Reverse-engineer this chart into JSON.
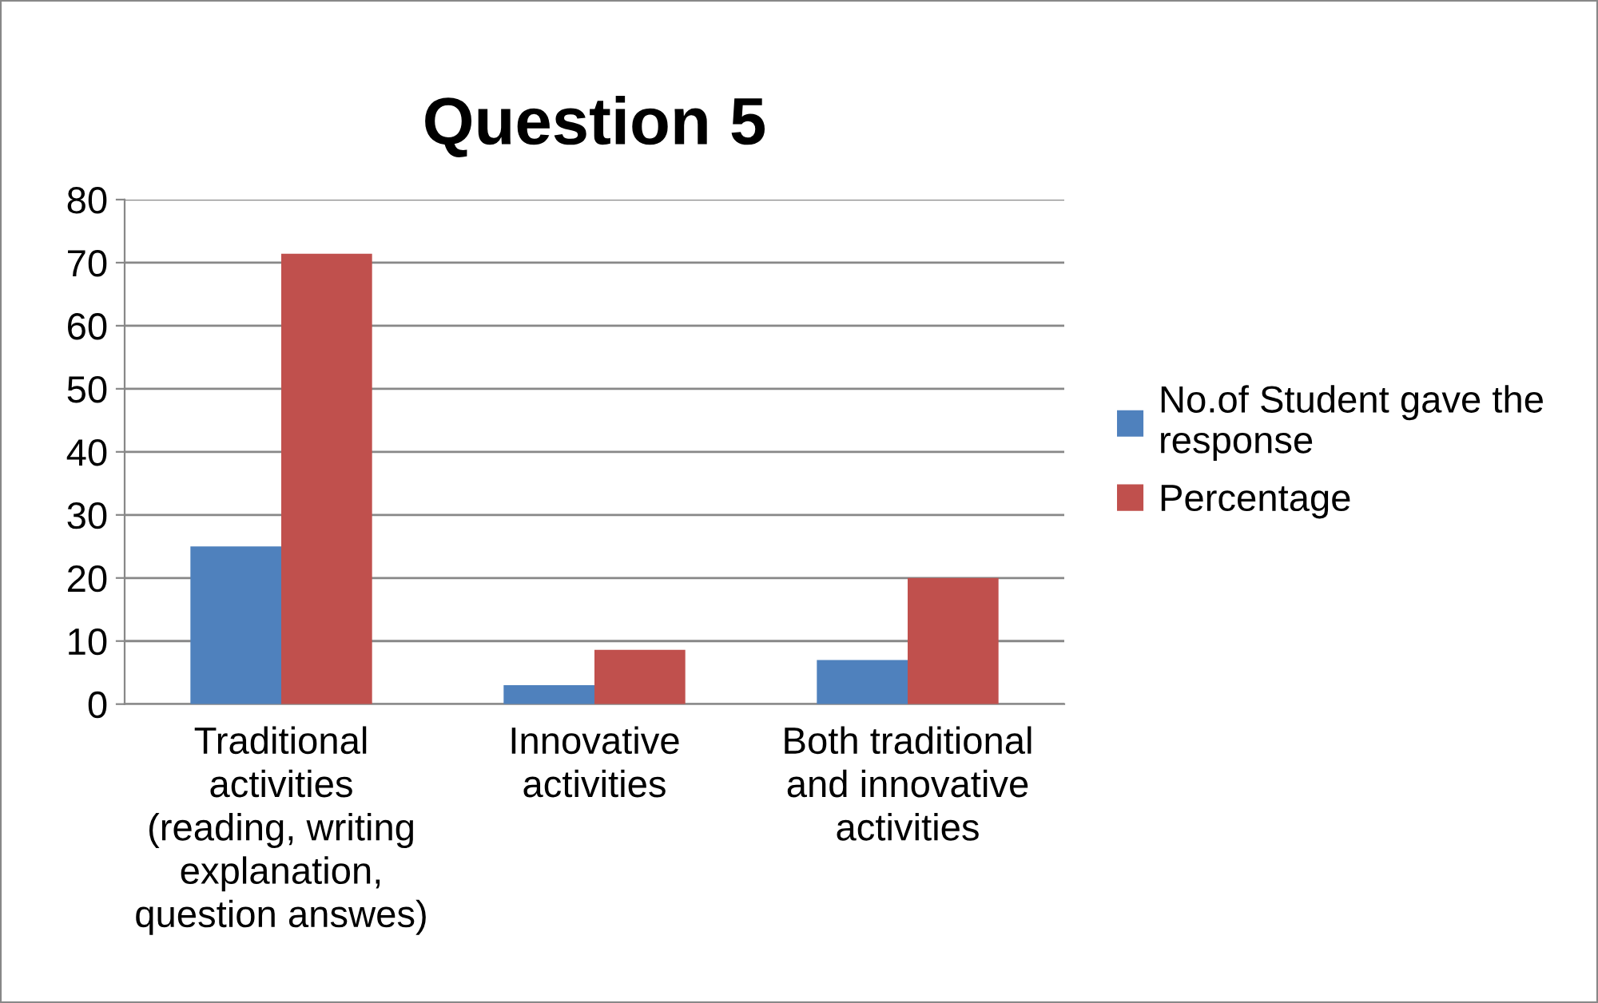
{
  "chart_data": {
    "type": "bar",
    "title": "Question 5",
    "categories": [
      "Traditional\nactivities\n(reading, writing\nexplanation,\nquestion answes)",
      "Innovative\nactivities",
      "Both traditional\nand innovative\nactivities"
    ],
    "series": [
      {
        "name": "No.of Student gave the\nresponse",
        "color": "#4f81bd",
        "values": [
          25,
          3,
          7
        ]
      },
      {
        "name": "Percentage",
        "color": "#c0504d",
        "values": [
          71.4,
          8.6,
          20
        ]
      }
    ],
    "ylim": [
      0,
      80
    ],
    "yticks": [
      0,
      10,
      20,
      30,
      40,
      50,
      60,
      70,
      80
    ],
    "grid": "y",
    "legend": "right"
  }
}
